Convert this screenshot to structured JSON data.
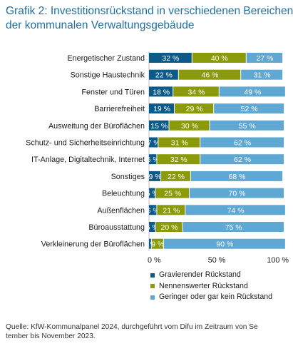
{
  "header": {
    "title_line1": "Grafik 2: Investitionsrückstand in verschiedenen Bereichen",
    "title_line2": "der kommunalen Verwaltungsgebäude"
  },
  "chart_data": {
    "type": "bar",
    "orientation": "horizontal-stacked-100",
    "categories": [
      "Energetischer Zustand",
      "Sonstige Haustechnik",
      "Fenster und Türen",
      "Barrierefreiheit",
      "Ausweitung der Büroflächen",
      "Schutz- und Sicherheitseinrichtung",
      "IT-Anlage, Digitaltechnik, Internet",
      "Sonstiges",
      "Beleuchtung",
      "Außenflächen",
      "Büroausstattung",
      "Verkleinerung der Büroflächen"
    ],
    "series": [
      {
        "name": "Gravierender Rückstand",
        "color": "#0b5a8a",
        "values": [
          32,
          22,
          18,
          19,
          15,
          7,
          6,
          9,
          5,
          6,
          5,
          2
        ]
      },
      {
        "name": "Nennenswerter Rückstand",
        "color": "#8a9a0a",
        "values": [
          40,
          46,
          34,
          29,
          30,
          31,
          32,
          22,
          25,
          21,
          20,
          9
        ]
      },
      {
        "name": "Geringer oder gar kein Rückstand",
        "color": "#5fa8d3",
        "values": [
          27,
          31,
          49,
          52,
          55,
          62,
          62,
          68,
          70,
          74,
          75,
          90
        ]
      }
    ],
    "xlim": [
      0,
      100
    ],
    "xticks": [
      "0 %",
      "50 %",
      "100 %"
    ],
    "value_suffix": " %",
    "legend_position": "bottom"
  },
  "legend": [
    "Gravierender Rückstand",
    "Nennenswerter Rückstand",
    "Geringer oder gar kein Rückstand"
  ],
  "source": {
    "line1": "Quelle: KfW-Kommunalpanel 2024, durchgeführt vom Difu im Zeitraum von Se",
    "line2": "tember bis November 2023."
  }
}
